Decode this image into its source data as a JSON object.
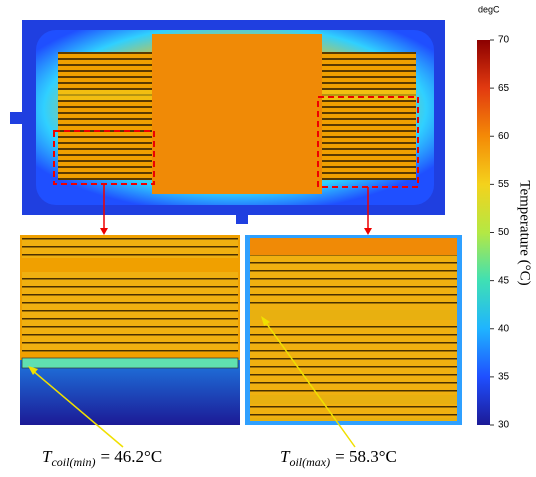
{
  "chart_data": {
    "type": "heatmap",
    "unit": "degC",
    "colorbar_label": "Temperature (°C)",
    "clim": [
      30,
      70
    ],
    "cticks": [
      30,
      35,
      40,
      45,
      50,
      55,
      60,
      65,
      70
    ],
    "colormap": [
      "#1c1a96",
      "#1f4fff",
      "#1fb4ff",
      "#3fe0b4",
      "#b4e844",
      "#f4d21c",
      "#f48a06",
      "#e23a10",
      "#8c0000"
    ],
    "annotations": [
      {
        "symbol": "T",
        "subscript": "coil(min)",
        "text": "= 46.2°C"
      },
      {
        "symbol": "T",
        "subscript": "oil(max)",
        "text": "= 58.3°C"
      }
    ]
  }
}
